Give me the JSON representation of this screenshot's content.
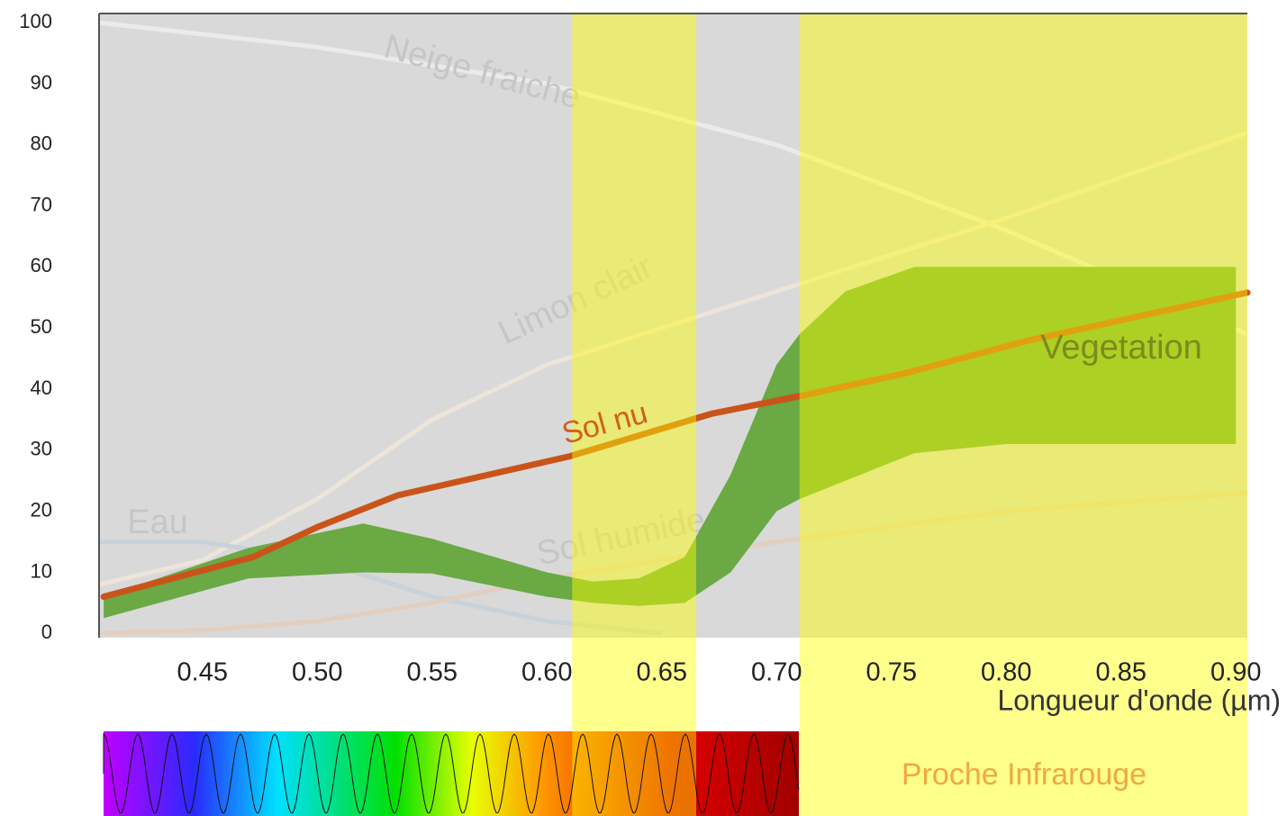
{
  "chart_data": {
    "type": "line",
    "xlabel": "Longueur d'onde (µm)",
    "xlim": [
      0.405,
      0.905
    ],
    "ylim": [
      -0.7,
      101.5
    ],
    "xticks": [
      0.45,
      {
        "value": 0.5,
        "label": "0.50"
      },
      0.55,
      {
        "value": 0.6,
        "label": "0.60"
      },
      0.65,
      {
        "value": 0.7,
        "label": "0.70"
      },
      0.75,
      {
        "value": 0.8,
        "label": "0.80"
      },
      0.85,
      {
        "value": 0.9,
        "label": "0.90"
      }
    ],
    "yticks": [
      0,
      10,
      20,
      30,
      40,
      50,
      60,
      70,
      80,
      90,
      100
    ],
    "series": [
      {
        "name": "Sol nu",
        "color": "#c9541a",
        "x": [
          0.407,
          0.472,
          0.5,
          0.535,
          0.61,
          0.672,
          0.712,
          0.755,
          0.81,
          0.905
        ],
        "values": [
          6,
          12.5,
          17.4,
          22.6,
          29,
          36,
          39,
          42.5,
          48,
          55.8
        ]
      }
    ],
    "band": {
      "name": "Vegetation",
      "color": "#6aa944",
      "x": [
        0.407,
        0.47,
        0.52,
        0.55,
        0.6,
        0.62,
        0.64,
        0.66,
        0.68,
        0.7,
        0.71,
        0.73,
        0.76,
        0.8,
        0.9
      ],
      "upper": [
        6,
        14,
        18,
        15.5,
        10,
        8.5,
        9,
        12.5,
        26,
        44,
        49,
        56,
        60,
        60,
        60
      ],
      "lower": [
        2.5,
        9,
        10,
        9.8,
        6,
        5,
        4.5,
        5,
        10,
        20,
        22,
        25,
        29.5,
        31,
        31
      ]
    },
    "background_curves": [
      {
        "name": "Neige fraiche",
        "x": [
          0.405,
          0.5,
          0.6,
          0.7,
          0.8,
          0.905
        ],
        "values": [
          100,
          96,
          90,
          80,
          66,
          49
        ]
      },
      {
        "name": "Limon clair",
        "x": [
          0.405,
          0.45,
          0.5,
          0.55,
          0.6,
          0.7,
          0.8,
          0.905
        ],
        "values": [
          8,
          12,
          22,
          35,
          44,
          56,
          68,
          82
        ]
      },
      {
        "name": "Eau",
        "x": [
          0.405,
          0.45,
          0.5,
          0.55,
          0.6,
          0.65
        ],
        "values": [
          15,
          15,
          12,
          6,
          2,
          0
        ]
      },
      {
        "name": "Sol humide",
        "x": [
          0.405,
          0.45,
          0.5,
          0.55,
          0.6,
          0.7,
          0.8,
          0.905
        ],
        "values": [
          0,
          0.5,
          2,
          5,
          9,
          15,
          20,
          23
        ]
      }
    ],
    "highlights": [
      [
        0.611,
        0.665
      ],
      [
        0.71,
        0.905
      ]
    ],
    "spectrum_label": "Proche Infrarouge"
  }
}
